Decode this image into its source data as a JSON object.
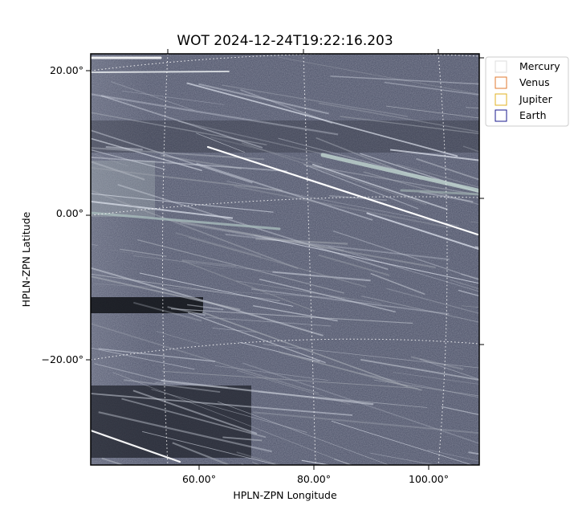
{
  "chart_data": {
    "type": "image",
    "title": "WOT 2024-12-24T19:22:16.203",
    "xlabel": "HPLN-ZPN Longitude",
    "ylabel": "HPLN-ZPN Latitude",
    "x_ticks": [
      "60.00°",
      "80.00°",
      "100.00°"
    ],
    "y_ticks": [
      "20.00°",
      "0.00°",
      "−20.00°"
    ],
    "legend_placement": "top-right outside",
    "legend": [
      {
        "name": "Mercury",
        "color": "#dddddd"
      },
      {
        "name": "Venus",
        "color": "#e07a2f"
      },
      {
        "name": "Jupiter",
        "color": "#e0b020"
      },
      {
        "name": "Earth",
        "color": "#1a1a8c"
      }
    ],
    "grid": true,
    "grid_style": "dotted white",
    "image_colormap": "bone"
  }
}
